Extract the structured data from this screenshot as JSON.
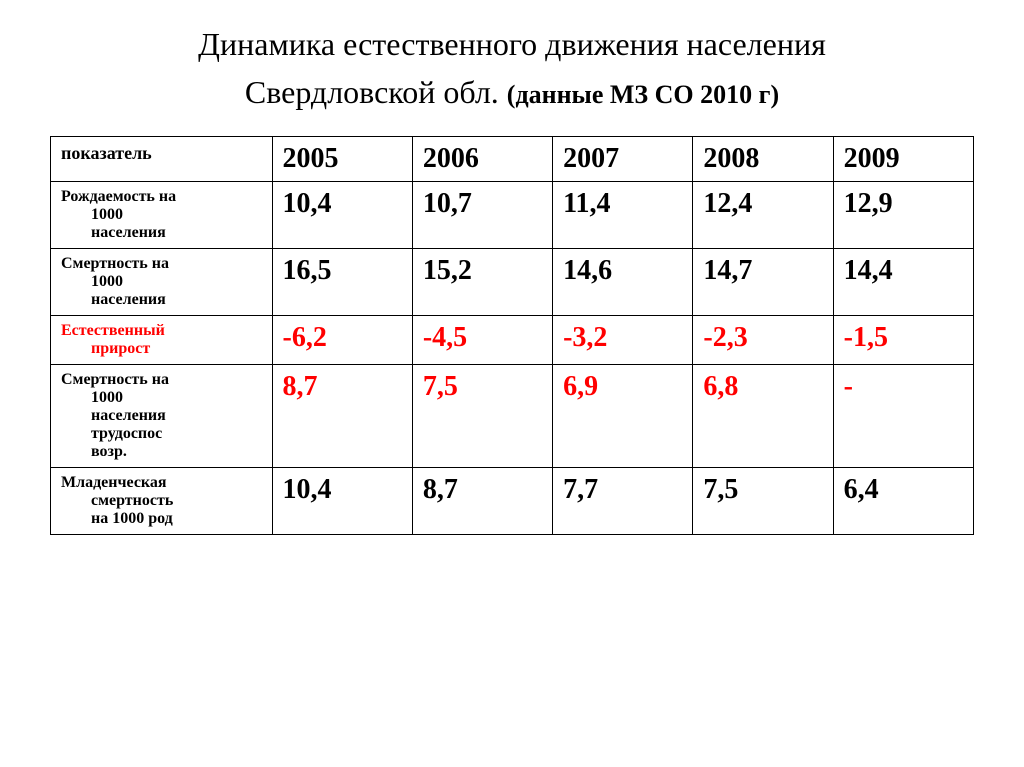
{
  "title": {
    "line1": "Динамика естественного движения населения",
    "line2_main": "Свердловской обл.",
    "line2_sub": "(данные МЗ СО 2010 г)"
  },
  "table": {
    "header": {
      "label": "показатель",
      "years": [
        "2005",
        "2006",
        "2007",
        "2008",
        "2009"
      ]
    },
    "rows": [
      {
        "label_main": "Рождаемость на",
        "label_indent": [
          "1000",
          "населения"
        ],
        "label_color": "#000000",
        "values": [
          "10,4",
          "10,7",
          "11,4",
          "12,4",
          "12,9"
        ],
        "value_color": "#000000"
      },
      {
        "label_main": "Смертность на",
        "label_indent": [
          "1000",
          "населения"
        ],
        "label_color": "#000000",
        "values": [
          "16,5",
          "15,2",
          "14,6",
          "14,7",
          "14,4"
        ],
        "value_color": "#000000"
      },
      {
        "label_main": "Естественный",
        "label_indent": [
          "прирост"
        ],
        "label_color": "#ff0000",
        "values": [
          "-6,2",
          "-4,5",
          "-3,2",
          "-2,3",
          "-1,5"
        ],
        "value_color": "#ff0000"
      },
      {
        "label_main": "Смертность на",
        "label_indent": [
          "1000",
          "населения",
          "трудоспос",
          "возр."
        ],
        "label_color": "#000000",
        "values": [
          "8,7",
          "7,5",
          "6,9",
          "6,8",
          "-"
        ],
        "value_color": "#ff0000"
      },
      {
        "label_main": "Младенческая",
        "label_indent": [
          "смертность",
          "на 1000 род"
        ],
        "label_color": "#000000",
        "values": [
          "10,4",
          "8,7",
          "7,7",
          "7,5",
          "6,4"
        ],
        "value_color": "#000000"
      }
    ]
  },
  "styling": {
    "background_color": "#ffffff",
    "border_color": "#000000",
    "title_fontsize": 32,
    "subtitle_fontsize": 26,
    "header_label_fontsize": 18,
    "header_year_fontsize": 28,
    "row_label_fontsize": 16,
    "row_value_fontsize": 28,
    "font_family": "Times New Roman"
  }
}
